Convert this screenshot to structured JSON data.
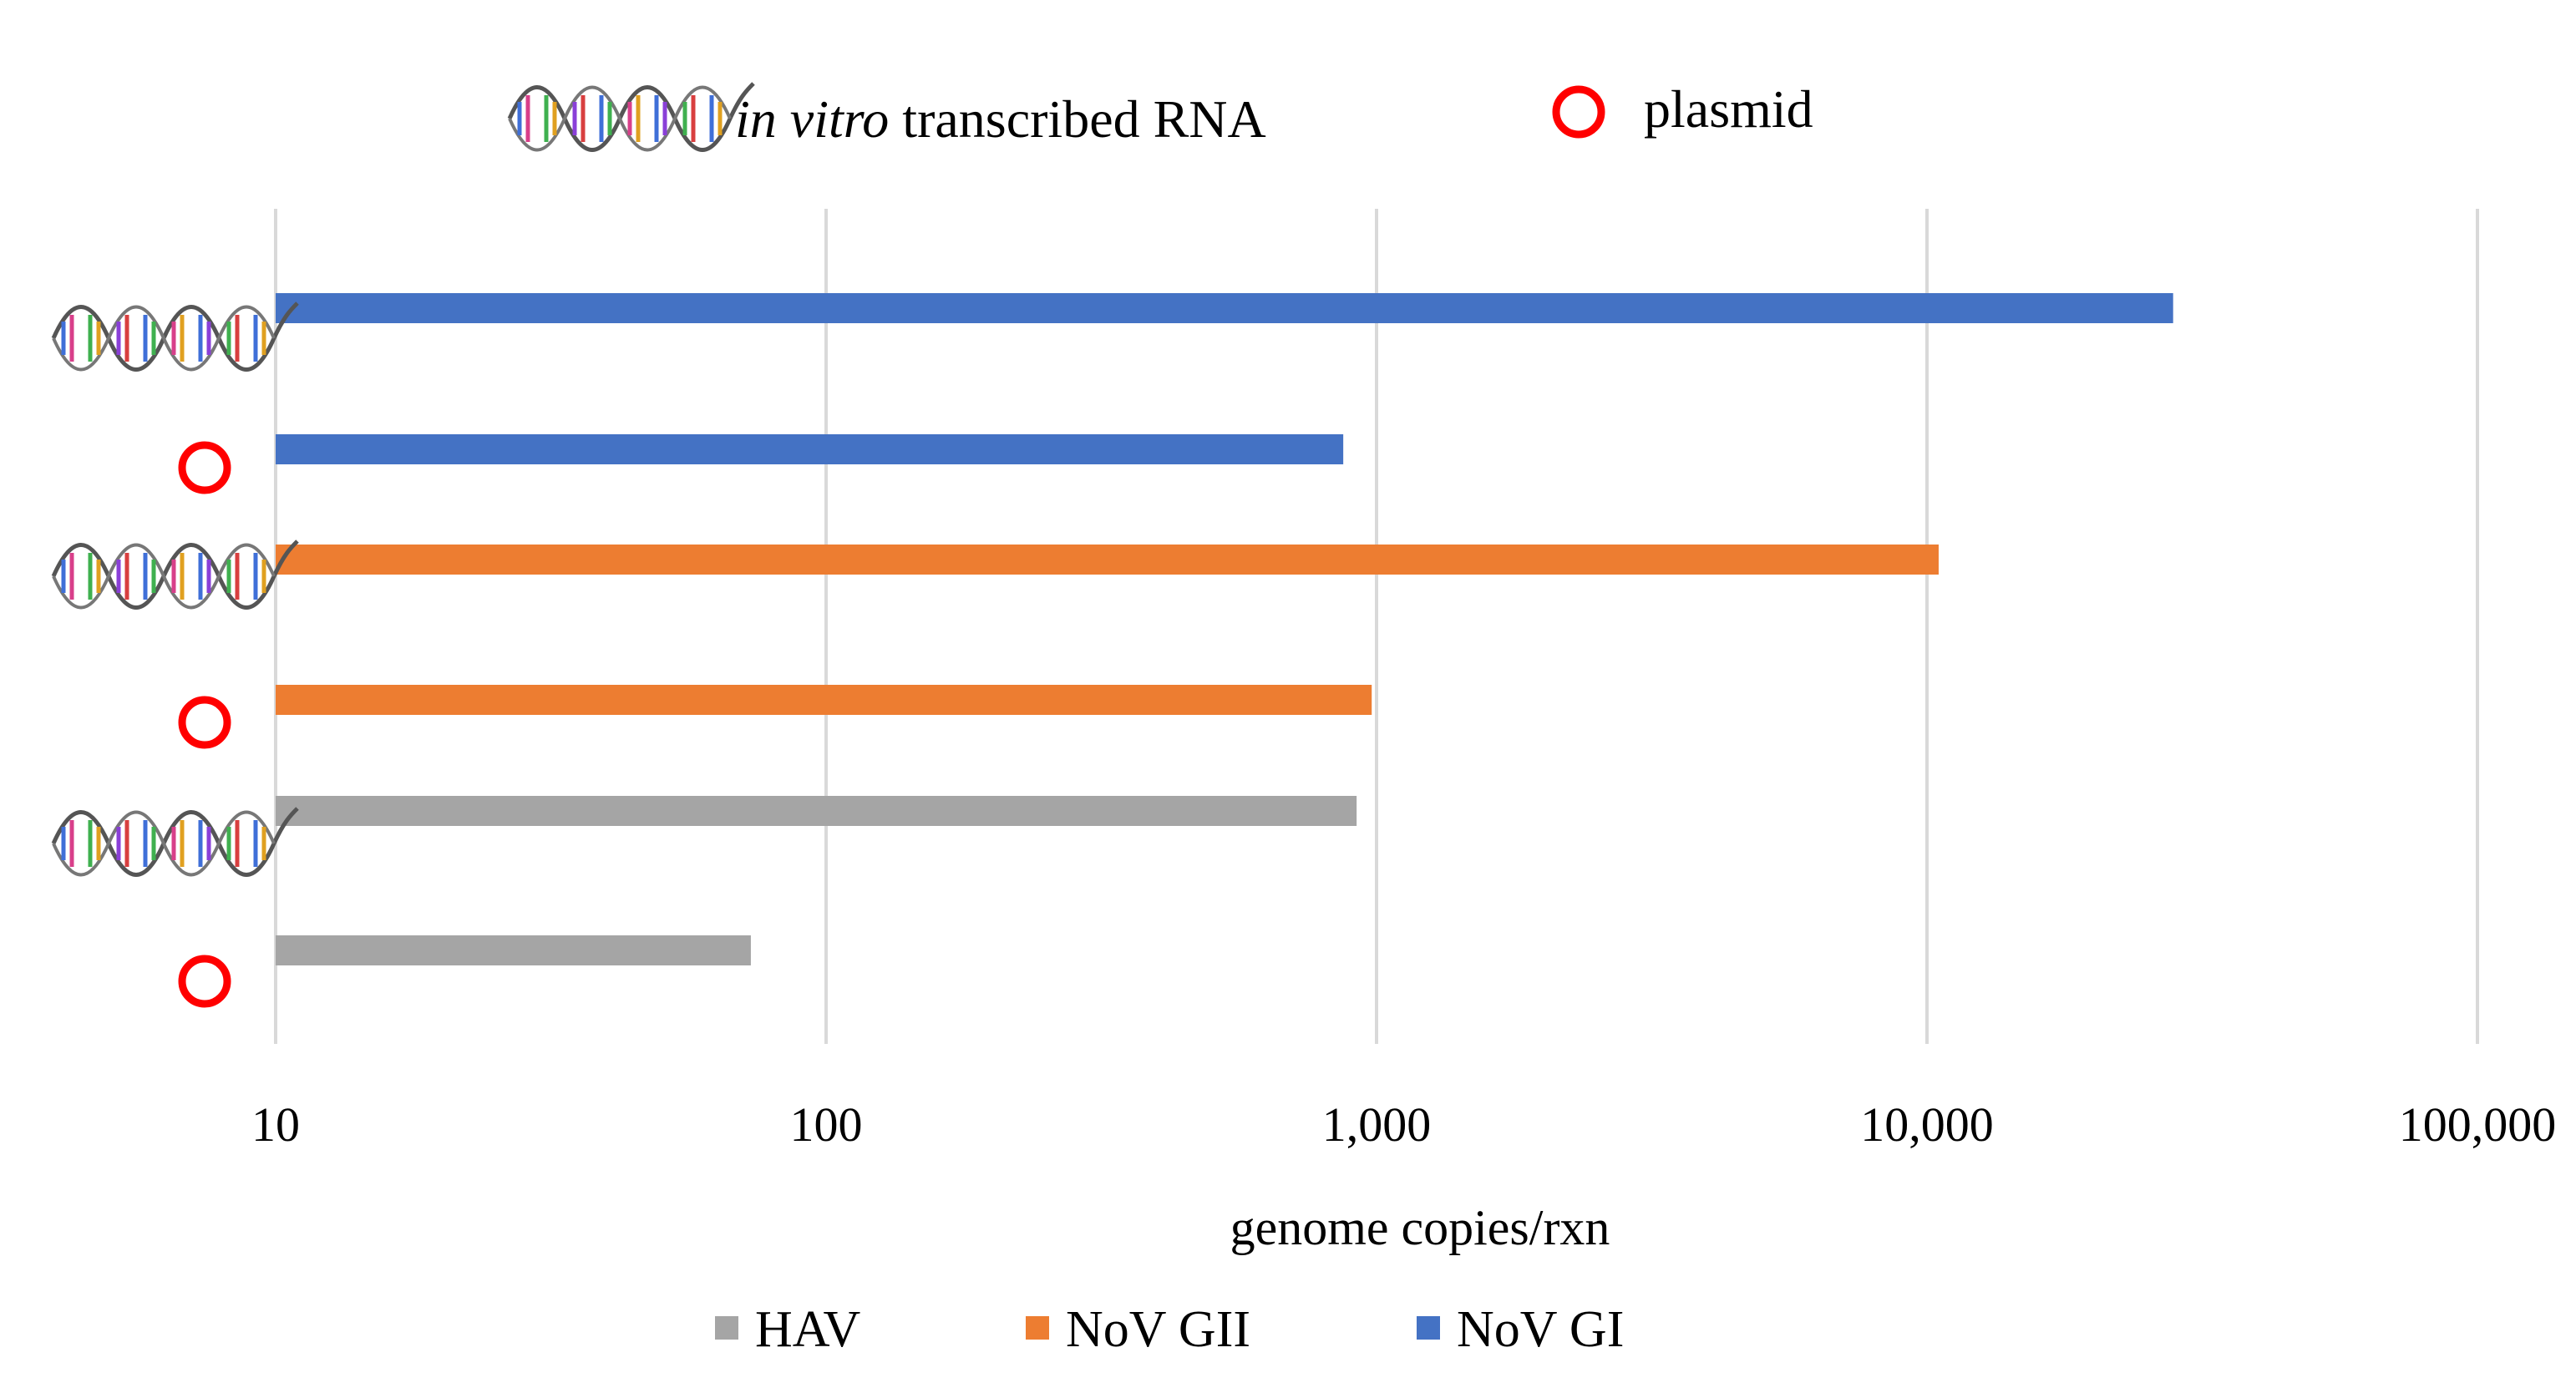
{
  "chart_data": {
    "type": "bar",
    "orientation": "horizontal",
    "x_scale": "log",
    "xlim": [
      10,
      100000
    ],
    "xlabel": "genome copies/rxn",
    "x_ticks": [
      "10",
      "100",
      "1,000",
      "10,000",
      "100,000"
    ],
    "x_tick_values": [
      10,
      100,
      1000,
      10000,
      100000
    ],
    "grid": true,
    "template_legend": {
      "rna_label_italic": "in vitro",
      "rna_label_rest": "transcribed RNA",
      "plasmid_label": "plasmid"
    },
    "categories": [
      {
        "target": "NoV GI",
        "template": "in vitro transcribed RNA"
      },
      {
        "target": "NoV GI",
        "template": "plasmid"
      },
      {
        "target": "NoV GII",
        "template": "in vitro transcribed RNA"
      },
      {
        "target": "NoV GII",
        "template": "plasmid"
      },
      {
        "target": "HAV",
        "template": "in vitro transcribed RNA"
      },
      {
        "target": "HAV",
        "template": "plasmid"
      }
    ],
    "values": [
      28000,
      870,
      10500,
      980,
      920,
      73
    ],
    "series": [
      {
        "name": "HAV",
        "color": "#a5a5a5"
      },
      {
        "name": "NoV GII",
        "color": "#ed7d31"
      },
      {
        "name": "NoV GI",
        "color": "#4472c4"
      }
    ],
    "legend": [
      "HAV",
      "NoV GII",
      "NoV GI"
    ],
    "legend_position": "bottom"
  },
  "colors": {
    "plasmid_ring": "#ff0000",
    "grid": "#d9d9d9"
  }
}
